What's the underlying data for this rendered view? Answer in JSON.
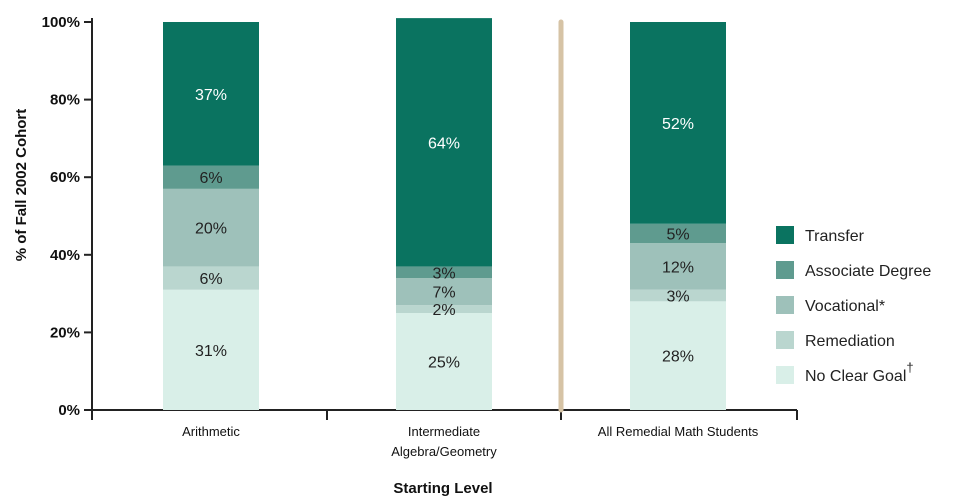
{
  "chart_data": {
    "type": "bar",
    "stacked": true,
    "xlabel": "Starting Level",
    "ylabel": "% of Fall 2002 Cohort",
    "ylim": [
      0,
      100
    ],
    "yticks": [
      "0%",
      "20%",
      "40%",
      "60%",
      "80%",
      "100%"
    ],
    "categories": [
      [
        "Arithmetic"
      ],
      [
        "Intermediate",
        "Algebra/Geometry"
      ],
      [
        "All Remedial Math Students"
      ]
    ],
    "series": [
      {
        "name": "No Clear Goal",
        "sup": "†",
        "color": "#d9efe8",
        "label_color": "#222222",
        "values": [
          31,
          25,
          28
        ],
        "labels": [
          "31%",
          "25%",
          "28%"
        ]
      },
      {
        "name": "Remediation",
        "color": "#bad6cf",
        "label_color": "#222222",
        "values": [
          6,
          2,
          3
        ],
        "labels": [
          "6%",
          "2%",
          "3%"
        ]
      },
      {
        "name": "Vocational*",
        "color": "#9ec1ba",
        "label_color": "#222222",
        "values": [
          20,
          7,
          12
        ],
        "labels": [
          "20%",
          "7%",
          "12%"
        ]
      },
      {
        "name": "Associate Degree",
        "color": "#5f9b8f",
        "label_color": "#222222",
        "values": [
          6,
          3,
          5
        ],
        "labels": [
          "6%",
          "3%",
          "5%"
        ]
      },
      {
        "name": "Transfer",
        "color": "#0a7360",
        "label_color": "#ffffff",
        "values": [
          37,
          64,
          52
        ],
        "labels": [
          "37%",
          "64%",
          "52%"
        ]
      }
    ],
    "legend": {
      "placement": "right",
      "order": [
        "Transfer",
        "Associate Degree",
        "Vocational*",
        "Remediation",
        "No Clear Goal"
      ]
    },
    "separator_color": "#d6c3a5",
    "grid": false
  }
}
